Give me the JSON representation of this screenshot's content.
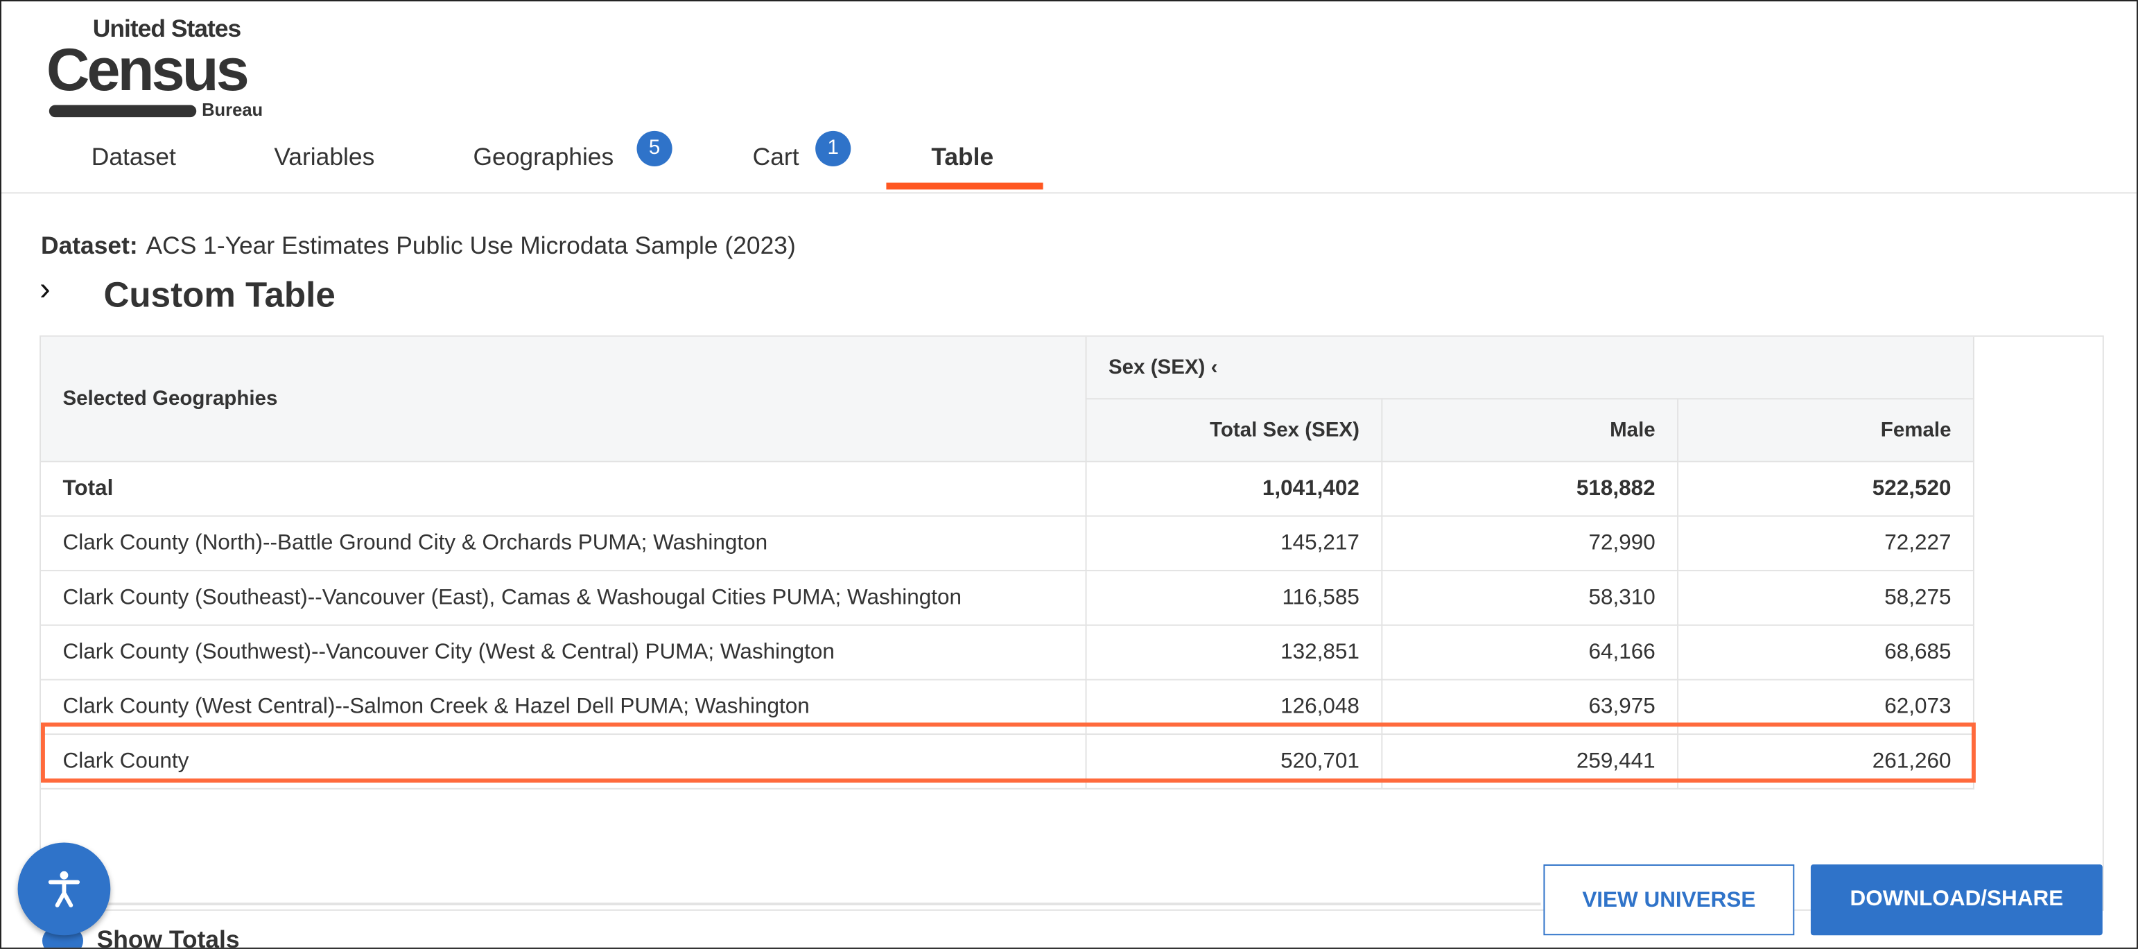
{
  "logo": {
    "line1": "United States",
    "line2": "Census",
    "line3": "Bureau"
  },
  "tabs": [
    {
      "label": "Dataset"
    },
    {
      "label": "Variables"
    },
    {
      "label": "Geographies",
      "badge": "5"
    },
    {
      "label": "Cart",
      "badge": "1"
    },
    {
      "label": "Table"
    }
  ],
  "dataset": {
    "label": "Dataset:",
    "value": "ACS 1-Year Estimates Public Use Microdata Sample (2023)"
  },
  "title": "Custom Table",
  "table": {
    "row_header": "Selected Geographies",
    "group_header": "Sex (SEX)",
    "columns": [
      "Total Sex (SEX)",
      "Male",
      "Female"
    ],
    "rows": [
      {
        "geo": "Total",
        "values": [
          "1,041,402",
          "518,882",
          "522,520"
        ]
      },
      {
        "geo": "Clark County (North)--Battle Ground City & Orchards PUMA; Washington",
        "values": [
          "145,217",
          "72,990",
          "72,227"
        ]
      },
      {
        "geo": "Clark County (Southeast)--Vancouver (East), Camas & Washougal Cities PUMA; Washington",
        "values": [
          "116,585",
          "58,310",
          "58,275"
        ]
      },
      {
        "geo": "Clark County (Southwest)--Vancouver City (West & Central) PUMA; Washington",
        "values": [
          "132,851",
          "64,166",
          "68,685"
        ]
      },
      {
        "geo": "Clark County (West Central)--Salmon Creek & Hazel Dell PUMA; Washington",
        "values": [
          "126,048",
          "63,975",
          "62,073"
        ]
      },
      {
        "geo": "Clark County",
        "values": [
          "520,701",
          "259,441",
          "261,260"
        ]
      }
    ]
  },
  "buttons": {
    "view_universe": "VIEW UNIVERSE",
    "download": "DOWNLOAD/SHARE"
  },
  "show_totals": "Show Totals",
  "colors": {
    "accent": "#2f73c9",
    "highlight": "#ff6a3c",
    "tab_underline": "#ff5722"
  }
}
